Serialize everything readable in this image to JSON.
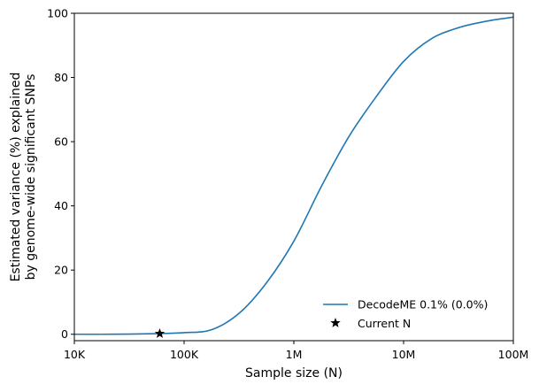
{
  "chart_data": {
    "type": "line",
    "title": "",
    "xlabel": "Sample size (N)",
    "ylabel": [
      "Estimated variance (%) explained",
      "by genome-wide significant SNPs"
    ],
    "xscale": "log",
    "xlim": [
      10000,
      100000000
    ],
    "ylim": [
      -2,
      100
    ],
    "xticks": [
      {
        "value": 10000,
        "label": "10K"
      },
      {
        "value": 100000,
        "label": "100K"
      },
      {
        "value": 1000000,
        "label": "1M"
      },
      {
        "value": 10000000,
        "label": "10M"
      },
      {
        "value": 100000000,
        "label": "100M"
      }
    ],
    "yticks": [
      {
        "value": 0,
        "label": "0"
      },
      {
        "value": 20,
        "label": "20"
      },
      {
        "value": 40,
        "label": "40"
      },
      {
        "value": 60,
        "label": "60"
      },
      {
        "value": 80,
        "label": "80"
      },
      {
        "value": 100,
        "label": "100"
      }
    ],
    "grid": false,
    "legend_position": "bottom-right",
    "series": [
      {
        "name": "DecodeME 0.1% (0.0%)",
        "color": "#1f77b4",
        "log10_x": [
          4.0,
          4.25,
          4.5,
          4.75,
          5.0,
          5.25,
          5.5,
          5.75,
          6.0,
          6.25,
          6.5,
          6.75,
          7.0,
          7.25,
          7.5,
          7.75,
          8.0
        ],
        "y": [
          0.0,
          0.0,
          0.05,
          0.2,
          0.5,
          1.4,
          6.5,
          16,
          29,
          46,
          61.5,
          74,
          85,
          92,
          95.5,
          97.5,
          98.8
        ]
      }
    ],
    "markers": [
      {
        "name": "Current N",
        "x": 60000,
        "y": 0.2,
        "marker": "star",
        "color": "#000000"
      }
    ]
  }
}
